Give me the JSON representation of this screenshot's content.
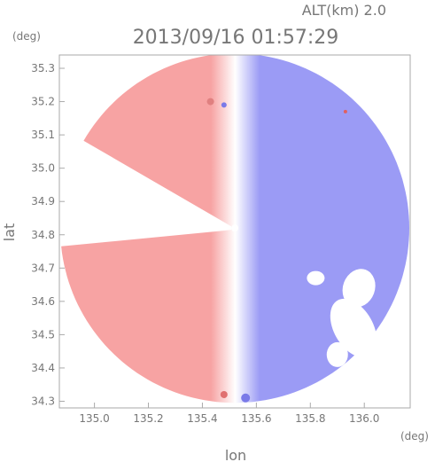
{
  "chart_data": {
    "type": "heatmap",
    "title": "2013/09/16 01:57:29",
    "altitude_label": "ALT(km) 2.0",
    "xlabel": "lon",
    "ylabel": "lat",
    "x_unit": "(deg)",
    "y_unit": "(deg)",
    "xlim": [
      134.87,
      136.17
    ],
    "ylim": [
      34.28,
      35.34
    ],
    "x_ticks": [
      "135.0",
      "135.2",
      "135.4",
      "135.6",
      "135.8",
      "136.0"
    ],
    "y_ticks": [
      "34.3",
      "34.4",
      "34.5",
      "34.6",
      "34.7",
      "34.8",
      "34.9",
      "35.0",
      "35.1",
      "35.2",
      "35.3"
    ],
    "grid": false,
    "radar_center": {
      "lon": 135.52,
      "lat": 34.82
    },
    "colors": {
      "positive": "#f7a3a3",
      "negative": "#9b9bf5",
      "neutral": "#ffffff",
      "axis": "#aaaaaa",
      "text": "#777777"
    }
  }
}
